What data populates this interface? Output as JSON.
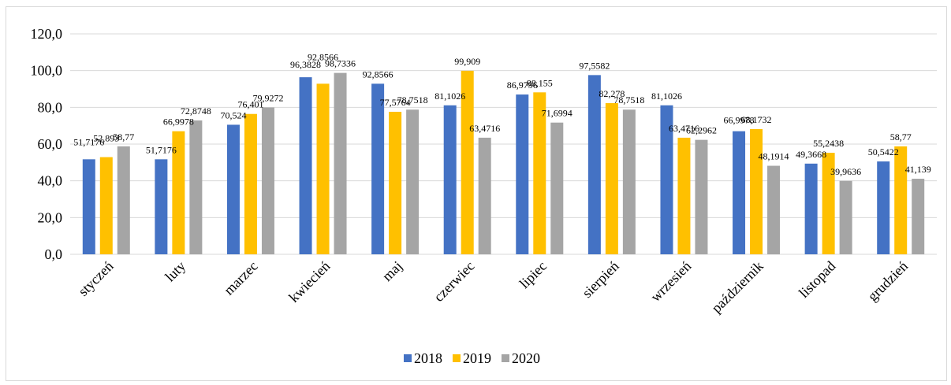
{
  "chart_data": {
    "type": "bar",
    "categories": [
      "styczeń",
      "luty",
      "marzec",
      "kwiecień",
      "maj",
      "czerwiec",
      "lipiec",
      "sierpień",
      "wrzesień",
      "październik",
      "listopad",
      "grudzień"
    ],
    "series": [
      {
        "name": "2018",
        "color": "#4472c4",
        "values": [
          51.7176,
          51.7176,
          70.524,
          96.3828,
          92.8566,
          81.1026,
          86.9796,
          97.5582,
          81.1026,
          66.9978,
          49.3668,
          50.5422
        ],
        "labels": [
          "51,7176",
          "51,7176",
          "70,524",
          "96,3828",
          "92,8566",
          "81,1026",
          "86,9796",
          "97,5582",
          "81,1026",
          "66,9978",
          "49,3668",
          "50,5422"
        ]
      },
      {
        "name": "2019",
        "color": "#ffc000",
        "values": [
          52.893,
          66.9978,
          76.401,
          92.8566,
          77.5764,
          99.909,
          88.155,
          82.278,
          63.4716,
          68.1732,
          55.2438,
          58.77
        ],
        "labels": [
          "52,893",
          "66,9978",
          "76,401",
          "92,8566",
          "77,5764",
          "99,909",
          "88,155",
          "82,278",
          "63,4716",
          "68,1732",
          "55,2438",
          "58,77"
        ]
      },
      {
        "name": "2020",
        "color": "#a5a5a5",
        "values": [
          58.77,
          72.8748,
          79.9272,
          98.7336,
          78.7518,
          63.4716,
          71.6994,
          78.7518,
          62.2962,
          48.1914,
          39.9636,
          41.139
        ],
        "labels": [
          "58,77",
          "72,8748",
          "79,9272",
          "98,7336",
          "78,7518",
          "63,4716",
          "71,6994",
          "78,7518",
          "62,2962",
          "48,1914",
          "39,9636",
          "41,139"
        ]
      }
    ],
    "ylim": [
      0,
      120
    ],
    "yticks": [
      0,
      20,
      40,
      60,
      80,
      100,
      120
    ],
    "ytick_labels": [
      "0,0",
      "20,0",
      "40,0",
      "60,0",
      "80,0",
      "100,0",
      "120,0"
    ],
    "grid": true,
    "legend_position": "bottom",
    "title": "",
    "xlabel": "",
    "ylabel": ""
  }
}
